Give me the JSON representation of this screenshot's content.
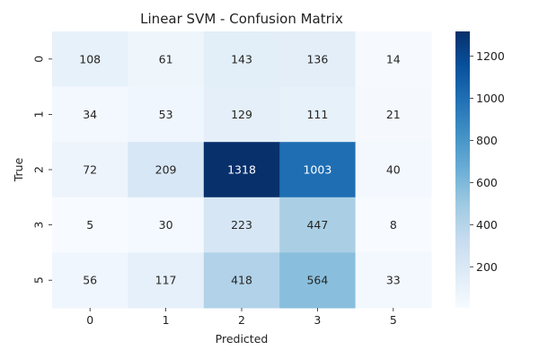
{
  "chart_data": {
    "type": "heatmap",
    "title": "Linear SVM - Confusion Matrix",
    "xlabel": "Predicted",
    "ylabel": "True",
    "x_categories": [
      "0",
      "1",
      "2",
      "3",
      "5"
    ],
    "y_categories": [
      "0",
      "1",
      "2",
      "3",
      "5"
    ],
    "values": [
      [
        108,
        61,
        143,
        136,
        14
      ],
      [
        34,
        53,
        129,
        111,
        21
      ],
      [
        72,
        209,
        1318,
        1003,
        40
      ],
      [
        5,
        30,
        223,
        447,
        8
      ],
      [
        56,
        117,
        418,
        564,
        33
      ]
    ],
    "colormap": "Blues",
    "colormap_stops": [
      "#f7fbff",
      "#deebf7",
      "#c6dbef",
      "#9ecae1",
      "#6baed6",
      "#4292c6",
      "#2171b5",
      "#08519c",
      "#08306b"
    ],
    "color_range": [
      5,
      1318
    ],
    "colorbar_ticks": [
      200,
      400,
      600,
      800,
      1000,
      1200
    ],
    "light_text_color": "#ffffff",
    "dark_text_color": "#262626"
  }
}
